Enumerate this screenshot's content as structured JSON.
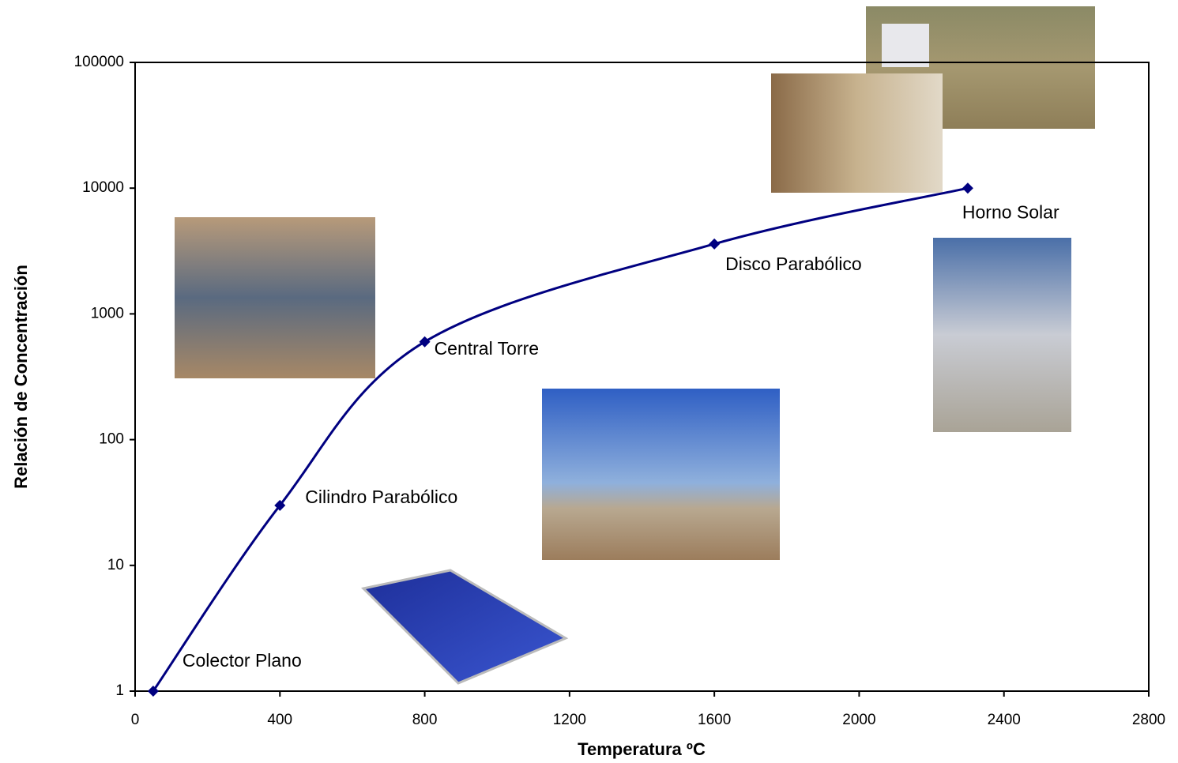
{
  "chart_data": {
    "type": "line",
    "x_label": "Temperatura ºC",
    "y_label": "Relación de Concentración",
    "x": [
      50,
      400,
      800,
      1600,
      2300
    ],
    "series": [
      {
        "name": "Relación de Concentración",
        "color": "#000080",
        "values": [
          1,
          30,
          600,
          3600,
          10000
        ]
      }
    ],
    "point_labels": [
      "Colector Plano",
      "Cilindro Parabólico",
      "Central Torre",
      "Disco Parabólico",
      "Horno Solar"
    ],
    "xlim": [
      0,
      2800
    ],
    "xticks": [
      0,
      400,
      800,
      1200,
      1600,
      2000,
      2400,
      2800
    ],
    "ylim": [
      1,
      100000
    ],
    "yticks": [
      1,
      10,
      100,
      1000,
      10000,
      100000
    ],
    "ylog": true,
    "grid": false
  }
}
